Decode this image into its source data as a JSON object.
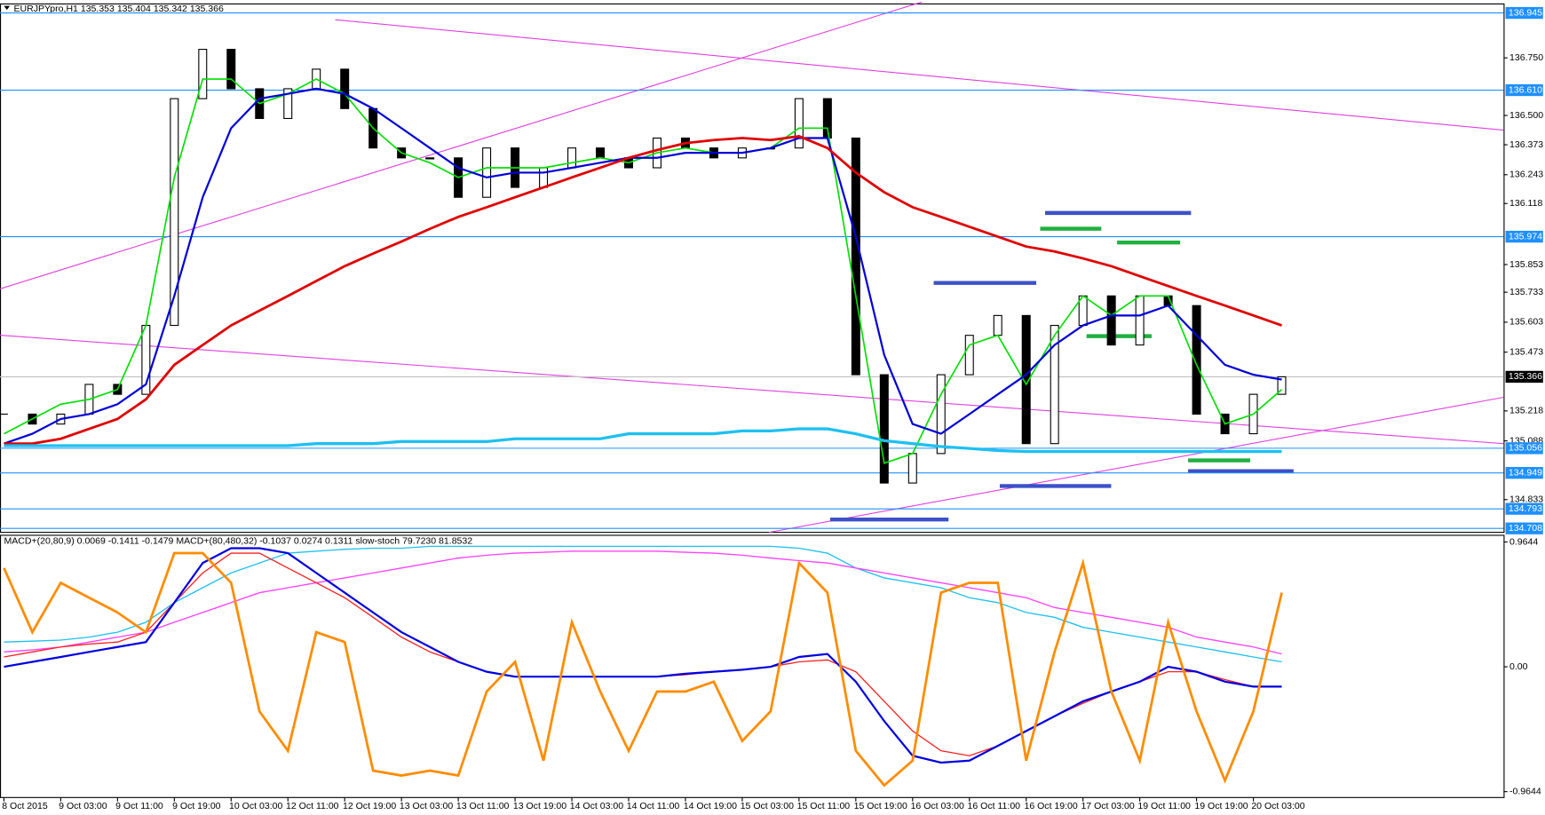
{
  "header": "EURJPYpro,H1  135.353 135.404 135.342 135.366",
  "chart_data": [
    {
      "type": "candlestick",
      "close": [
        135.204,
        135.161,
        135.204,
        135.333,
        135.29,
        135.589,
        136.573,
        136.787,
        136.616,
        136.487,
        136.616,
        136.701,
        136.53,
        136.359,
        136.316,
        136.316,
        136.145,
        136.359,
        136.188,
        136.273,
        136.359,
        136.316,
        136.273,
        136.402,
        136.359,
        136.316,
        136.359,
        136.359,
        136.573,
        136.402,
        135.375,
        134.905,
        135.033,
        135.375,
        135.546,
        135.632,
        135.076,
        135.589,
        135.717,
        135.504,
        135.717,
        135.675,
        135.204,
        135.119,
        135.29,
        135.366
      ],
      "series": [
        {
          "color": "#00e000",
          "values": [
            135.119,
            135.183,
            135.247,
            135.268,
            135.311,
            135.589,
            136.231,
            136.658,
            136.658,
            136.552,
            136.594,
            136.658,
            136.594,
            136.445,
            136.338,
            136.295,
            136.231,
            136.273,
            136.273,
            136.273,
            136.295,
            136.316,
            136.295,
            136.338,
            136.359,
            136.338,
            136.338,
            136.359,
            136.445,
            136.445,
            135.717,
            134.991,
            135.033,
            135.29,
            135.504,
            135.546,
            135.333,
            135.546,
            135.717,
            135.632,
            135.717,
            135.717,
            135.418,
            135.161,
            135.204,
            135.311
          ]
        },
        {
          "color": "#0000d8",
          "values": [
            135.076,
            135.119,
            135.183,
            135.204,
            135.247,
            135.333,
            135.717,
            136.145,
            136.445,
            136.573,
            136.594,
            136.616,
            136.594,
            136.53,
            136.445,
            136.359,
            136.273,
            136.231,
            136.252,
            136.252,
            136.273,
            136.295,
            136.316,
            136.316,
            136.338,
            136.338,
            136.338,
            136.359,
            136.402,
            136.402,
            135.974,
            135.461,
            135.161,
            135.119,
            135.204,
            135.29,
            135.375,
            135.504,
            135.589,
            135.632,
            135.632,
            135.675,
            135.546,
            135.418,
            135.375,
            135.354
          ]
        },
        {
          "color": "#e00000",
          "values": [
            135.076,
            135.076,
            135.097,
            135.14,
            135.183,
            135.268,
            135.418,
            135.504,
            135.589,
            135.653,
            135.717,
            135.782,
            135.846,
            135.901,
            135.953,
            136.008,
            136.06,
            136.102,
            136.145,
            136.188,
            136.231,
            136.273,
            136.316,
            136.35,
            136.38,
            136.393,
            136.402,
            136.393,
            136.41,
            136.359,
            136.252,
            136.167,
            136.102,
            136.06,
            136.017,
            135.974,
            135.931,
            135.91,
            135.88,
            135.846,
            135.803,
            135.76,
            135.717,
            135.675,
            135.632,
            135.589
          ]
        },
        {
          "color": "#1ec0f0",
          "values": [
            135.067,
            135.067,
            135.067,
            135.067,
            135.067,
            135.067,
            135.067,
            135.067,
            135.067,
            135.067,
            135.067,
            135.076,
            135.076,
            135.076,
            135.085,
            135.085,
            135.085,
            135.085,
            135.097,
            135.097,
            135.097,
            135.097,
            135.119,
            135.119,
            135.119,
            135.119,
            135.131,
            135.131,
            135.14,
            135.14,
            135.119,
            135.089,
            135.076,
            135.063,
            135.055,
            135.046,
            135.042,
            135.042,
            135.042,
            135.042,
            135.042,
            135.042,
            135.042,
            135.042,
            135.042,
            135.042
          ]
        }
      ],
      "ylim": [
        134.691,
        136.984
      ],
      "yticks": [
        {
          "value": 136.75,
          "label": "136.750"
        },
        {
          "value": 136.5,
          "label": "136.500"
        },
        136.373,
        136.243,
        136.118,
        135.853,
        135.733,
        135.603,
        135.473,
        135.218,
        135.088,
        134.833
      ],
      "levels": [
        136.945,
        {
          "value": 136.61,
          "label": "136.610"
        },
        135.974,
        135.056,
        134.949,
        134.793,
        134.708
      ],
      "level_color": "#1e90ff",
      "last": 135.366,
      "last_color": "#000000"
    },
    {
      "type": "line",
      "title": "MACD+(20,80,9) 0.0069 -0.1411 -0.1479  MACD+(80,480,32) -0.1037 0.0274 0.1311  slow-stoch 79.7230 81.8532",
      "categories": [
        "8 Oct 2015",
        null,
        "9 Oct 03:00",
        null,
        "9 Oct 11:00",
        null,
        "9 Oct 19:00",
        null,
        "10 Oct 03:00",
        null,
        "12 Oct 11:00",
        null,
        "12 Oct 19:00",
        null,
        "13 Oct 03:00",
        null,
        "13 Oct 11:00",
        null,
        "13 Oct 19:00",
        null,
        "14 Oct 03:00",
        null,
        "14 Oct 11:00",
        null,
        "14 Oct 19:00",
        null,
        "15 Oct 03:00",
        null,
        "15 Oct 11:00",
        null,
        "15 Oct 19:00",
        null,
        "16 Oct 03:00",
        null,
        "16 Oct 11:00",
        null,
        "16 Oct 19:00",
        null,
        "17 Oct 03:00",
        null,
        "19 Oct 11:00",
        null,
        "19 Oct 19:00",
        null,
        "20 Oct 03:00",
        null
      ],
      "series": [
        {
          "color": "#1ec0f0",
          "values": [
            0.191,
            0.198,
            0.206,
            0.229,
            0.267,
            0.344,
            0.496,
            0.611,
            0.725,
            0.802,
            0.878,
            0.893,
            0.908,
            0.916,
            0.916,
            0.931,
            0.931,
            0.931,
            0.931,
            0.931,
            0.931,
            0.931,
            0.931,
            0.931,
            0.931,
            0.931,
            0.931,
            0.931,
            0.916,
            0.878,
            0.763,
            0.687,
            0.649,
            0.611,
            0.534,
            0.496,
            0.42,
            0.382,
            0.305,
            0.267,
            0.229,
            0.191,
            0.153,
            0.115,
            0.076,
            0.038
          ]
        },
        {
          "color": "#ff40ff",
          "values": [
            0.115,
            0.13,
            0.153,
            0.191,
            0.229,
            0.267,
            0.344,
            0.42,
            0.496,
            0.573,
            0.611,
            0.649,
            0.687,
            0.725,
            0.763,
            0.802,
            0.84,
            0.862,
            0.878,
            0.885,
            0.893,
            0.893,
            0.893,
            0.893,
            0.885,
            0.878,
            0.862,
            0.84,
            0.82,
            0.802,
            0.763,
            0.725,
            0.687,
            0.649,
            0.611,
            0.573,
            0.534,
            0.458,
            0.42,
            0.382,
            0.344,
            0.305,
            0.229,
            0.191,
            0.153,
            0.099
          ]
        },
        {
          "color": "#ff2020",
          "values": [
            0.076,
            0.115,
            0.153,
            0.176,
            0.191,
            0.267,
            0.496,
            0.725,
            0.878,
            0.878,
            0.763,
            0.649,
            0.534,
            0.382,
            0.229,
            0.115,
            0.038,
            -0.038,
            -0.076,
            -0.076,
            -0.076,
            -0.076,
            -0.076,
            -0.076,
            -0.061,
            -0.038,
            -0.023,
            0,
            0.038,
            0.053,
            -0.038,
            -0.267,
            -0.496,
            -0.649,
            -0.687,
            -0.611,
            -0.496,
            -0.382,
            -0.282,
            -0.191,
            -0.115,
            -0.038,
            -0.038,
            -0.099,
            -0.153,
            -0.153
          ]
        },
        {
          "color": "#0000e0",
          "values": [
            0,
            0.038,
            0.076,
            0.115,
            0.153,
            0.191,
            0.496,
            0.802,
            0.916,
            0.916,
            0.878,
            0.725,
            0.573,
            0.42,
            0.267,
            0.153,
            0.038,
            -0.038,
            -0.076,
            -0.076,
            -0.076,
            -0.076,
            -0.076,
            -0.076,
            -0.053,
            -0.038,
            -0.023,
            0,
            0.076,
            0.099,
            -0.115,
            -0.42,
            -0.687,
            -0.74,
            -0.725,
            -0.611,
            -0.496,
            -0.382,
            -0.267,
            -0.191,
            -0.115,
            0,
            -0.038,
            -0.115,
            -0.153,
            -0.153
          ]
        },
        {
          "color": "#ff8c00",
          "values": [
            0.763,
            0.267,
            0.649,
            0.534,
            0.42,
            0.267,
            0.878,
            0.878,
            0.649,
            -0.344,
            -0.649,
            0.267,
            0.191,
            -0.802,
            -0.84,
            -0.802,
            -0.84,
            -0.191,
            0.038,
            -0.725,
            0.344,
            -0.191,
            -0.649,
            -0.191,
            -0.191,
            -0.115,
            -0.573,
            -0.344,
            0.802,
            0.573,
            -0.649,
            -0.916,
            -0.725,
            0.573,
            0.649,
            0.649,
            -0.725,
            0.115,
            0.802,
            -0.191,
            -0.725,
            0.344,
            -0.344,
            -0.878,
            -0.344,
            0.573
          ]
        }
      ],
      "ylim": [
        -1.01,
        1.016
      ],
      "yticks": [
        0.9644,
        {
          "value": 0,
          "label": "0.00"
        },
        -0.9644
      ]
    }
  ]
}
